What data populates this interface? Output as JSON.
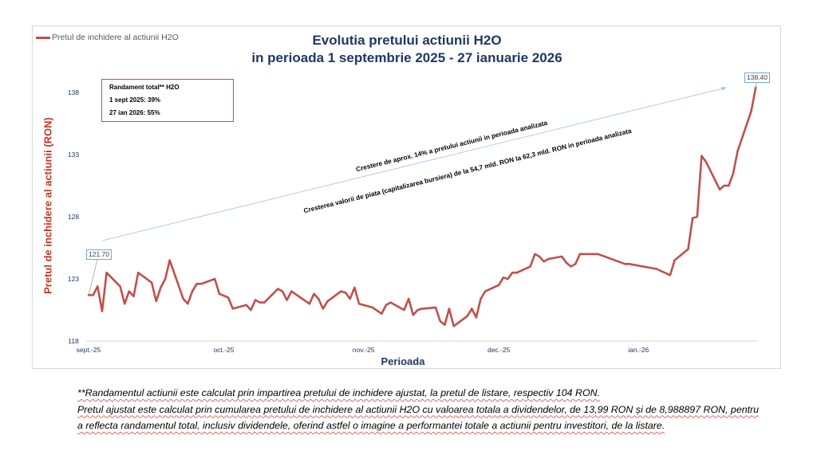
{
  "chart_data": {
    "type": "line",
    "title": [
      "Evolutia pretului actiunii H2O",
      "in perioada 1 septembrie 2025 - 27 ianuarie 2026"
    ],
    "xlabel": "Perioada",
    "ylabel": "Pretul de inchidere al actiunii (RON)",
    "ylim": [
      118,
      139.5
    ],
    "y_ticks": [
      "118",
      "123",
      "128",
      "133",
      "138"
    ],
    "x_ticks": [
      {
        "date": "2025-09-01",
        "label": "sept.-25"
      },
      {
        "date": "2025-10-01",
        "label": "oct.-25"
      },
      {
        "date": "2025-11-01",
        "label": "nov.-25"
      },
      {
        "date": "2025-12-01",
        "label": "dec.-25"
      },
      {
        "date": "2026-01-01",
        "label": "ian.-26"
      }
    ],
    "grid": false,
    "legend_position": "top-left",
    "series": [
      {
        "name": "Pretul de inchidere al actiunii H2O",
        "color": "#c0504d",
        "points": [
          [
            "2025-09-01",
            121.7
          ],
          [
            "2025-09-02",
            121.7
          ],
          [
            "2025-09-03",
            122.4
          ],
          [
            "2025-09-04",
            120.4
          ],
          [
            "2025-09-05",
            123.5
          ],
          [
            "2025-09-08",
            122.4
          ],
          [
            "2025-09-09",
            121.0
          ],
          [
            "2025-09-10",
            122.0
          ],
          [
            "2025-09-11",
            121.6
          ],
          [
            "2025-09-12",
            123.5
          ],
          [
            "2025-09-15",
            122.7
          ],
          [
            "2025-09-16",
            121.2
          ],
          [
            "2025-09-17",
            122.3
          ],
          [
            "2025-09-18",
            123.0
          ],
          [
            "2025-09-19",
            124.5
          ],
          [
            "2025-09-22",
            121.4
          ],
          [
            "2025-09-23",
            121.0
          ],
          [
            "2025-09-24",
            122.0
          ],
          [
            "2025-09-25",
            122.6
          ],
          [
            "2025-09-26",
            122.6
          ],
          [
            "2025-09-29",
            123.0
          ],
          [
            "2025-09-30",
            121.8
          ],
          [
            "2025-10-02",
            121.5
          ],
          [
            "2025-10-03",
            120.6
          ],
          [
            "2025-10-06",
            120.9
          ],
          [
            "2025-10-07",
            120.5
          ],
          [
            "2025-10-08",
            121.3
          ],
          [
            "2025-10-09",
            121.1
          ],
          [
            "2025-10-10",
            121.1
          ],
          [
            "2025-10-13",
            122.2
          ],
          [
            "2025-10-14",
            122.0
          ],
          [
            "2025-10-15",
            121.3
          ],
          [
            "2025-10-16",
            122.0
          ],
          [
            "2025-10-20",
            121.0
          ],
          [
            "2025-10-21",
            121.8
          ],
          [
            "2025-10-22",
            121.4
          ],
          [
            "2025-10-23",
            120.6
          ],
          [
            "2025-10-24",
            121.2
          ],
          [
            "2025-10-27",
            122.0
          ],
          [
            "2025-10-28",
            121.9
          ],
          [
            "2025-10-29",
            121.4
          ],
          [
            "2025-10-30",
            122.3
          ],
          [
            "2025-10-31",
            121.0
          ],
          [
            "2025-11-03",
            120.7
          ],
          [
            "2025-11-05",
            120.2
          ],
          [
            "2025-11-06",
            120.9
          ],
          [
            "2025-11-07",
            121.1
          ],
          [
            "2025-11-10",
            120.5
          ],
          [
            "2025-11-11",
            121.4
          ],
          [
            "2025-11-12",
            120.1
          ],
          [
            "2025-11-13",
            120.5
          ],
          [
            "2025-11-14",
            120.6
          ],
          [
            "2025-11-17",
            120.7
          ],
          [
            "2025-11-18",
            119.6
          ],
          [
            "2025-11-19",
            119.3
          ],
          [
            "2025-11-20",
            120.6
          ],
          [
            "2025-11-21",
            119.2
          ],
          [
            "2025-11-24",
            120.0
          ],
          [
            "2025-11-25",
            120.6
          ],
          [
            "2025-11-26",
            119.9
          ],
          [
            "2025-11-27",
            121.4
          ],
          [
            "2025-11-28",
            122.0
          ],
          [
            "2025-12-01",
            122.5
          ],
          [
            "2025-12-02",
            123.1
          ],
          [
            "2025-12-03",
            123.0
          ],
          [
            "2025-12-04",
            123.5
          ],
          [
            "2025-12-05",
            123.5
          ],
          [
            "2025-12-08",
            124.0
          ],
          [
            "2025-12-09",
            125.0
          ],
          [
            "2025-12-10",
            124.8
          ],
          [
            "2025-12-11",
            124.4
          ],
          [
            "2025-12-12",
            124.6
          ],
          [
            "2025-12-15",
            124.8
          ],
          [
            "2025-12-16",
            124.3
          ],
          [
            "2025-12-17",
            124.0
          ],
          [
            "2025-12-18",
            124.2
          ],
          [
            "2025-12-19",
            125.0
          ],
          [
            "2025-12-23",
            125.0
          ],
          [
            "2025-12-29",
            124.2
          ],
          [
            "2025-12-30",
            124.2
          ],
          [
            "2026-01-05",
            123.8
          ],
          [
            "2026-01-08",
            123.3
          ],
          [
            "2026-01-09",
            124.5
          ],
          [
            "2026-01-12",
            125.4
          ],
          [
            "2026-01-13",
            127.9
          ],
          [
            "2026-01-14",
            128.0
          ],
          [
            "2026-01-15",
            132.9
          ],
          [
            "2026-01-16",
            132.4
          ],
          [
            "2026-01-19",
            130.2
          ],
          [
            "2026-01-20",
            130.5
          ],
          [
            "2026-01-21",
            130.5
          ],
          [
            "2026-01-22",
            131.5
          ],
          [
            "2026-01-23",
            133.3
          ],
          [
            "2026-01-26",
            136.5
          ],
          [
            "2026-01-27",
            138.4
          ]
        ]
      }
    ],
    "data_labels": [
      {
        "date": "2025-09-01",
        "value": 121.7,
        "text": "121.70"
      },
      {
        "date": "2026-01-27",
        "value": 138.4,
        "text": "138.40"
      }
    ],
    "trend_arrow_color": "#9dc3e6",
    "annotations": [
      "Crestere de aprox. 14% a pretului actiunii in perioada analizata",
      "Cresterea valorii de piata (capitalizarea bursiera) de la 54,7 mld.  RON la 62,3 mld. RON in perioada analizata"
    ],
    "info_box": {
      "title": "Randament total** H2O",
      "line1": "1 sept 2025: 39%",
      "line2": "27 ian 2026: 55%"
    }
  },
  "footnote": [
    "**Randamentul actiunii este calculat prin impartirea pretului de inchidere ajustat, la pretul de listare, respectiv 104 RON.",
    "Pretul ajustat este calculat prin cumularea pretului de inchidere al actiunii H2O cu valoarea totala a dividendelor, de 13,99 RON și de 8,988897 RON, pentru a reflecta randamentul total, inclusiv dividendele, oferind astfel o imagine a performantei totale a actiunii pentru investitori, de la listare."
  ]
}
